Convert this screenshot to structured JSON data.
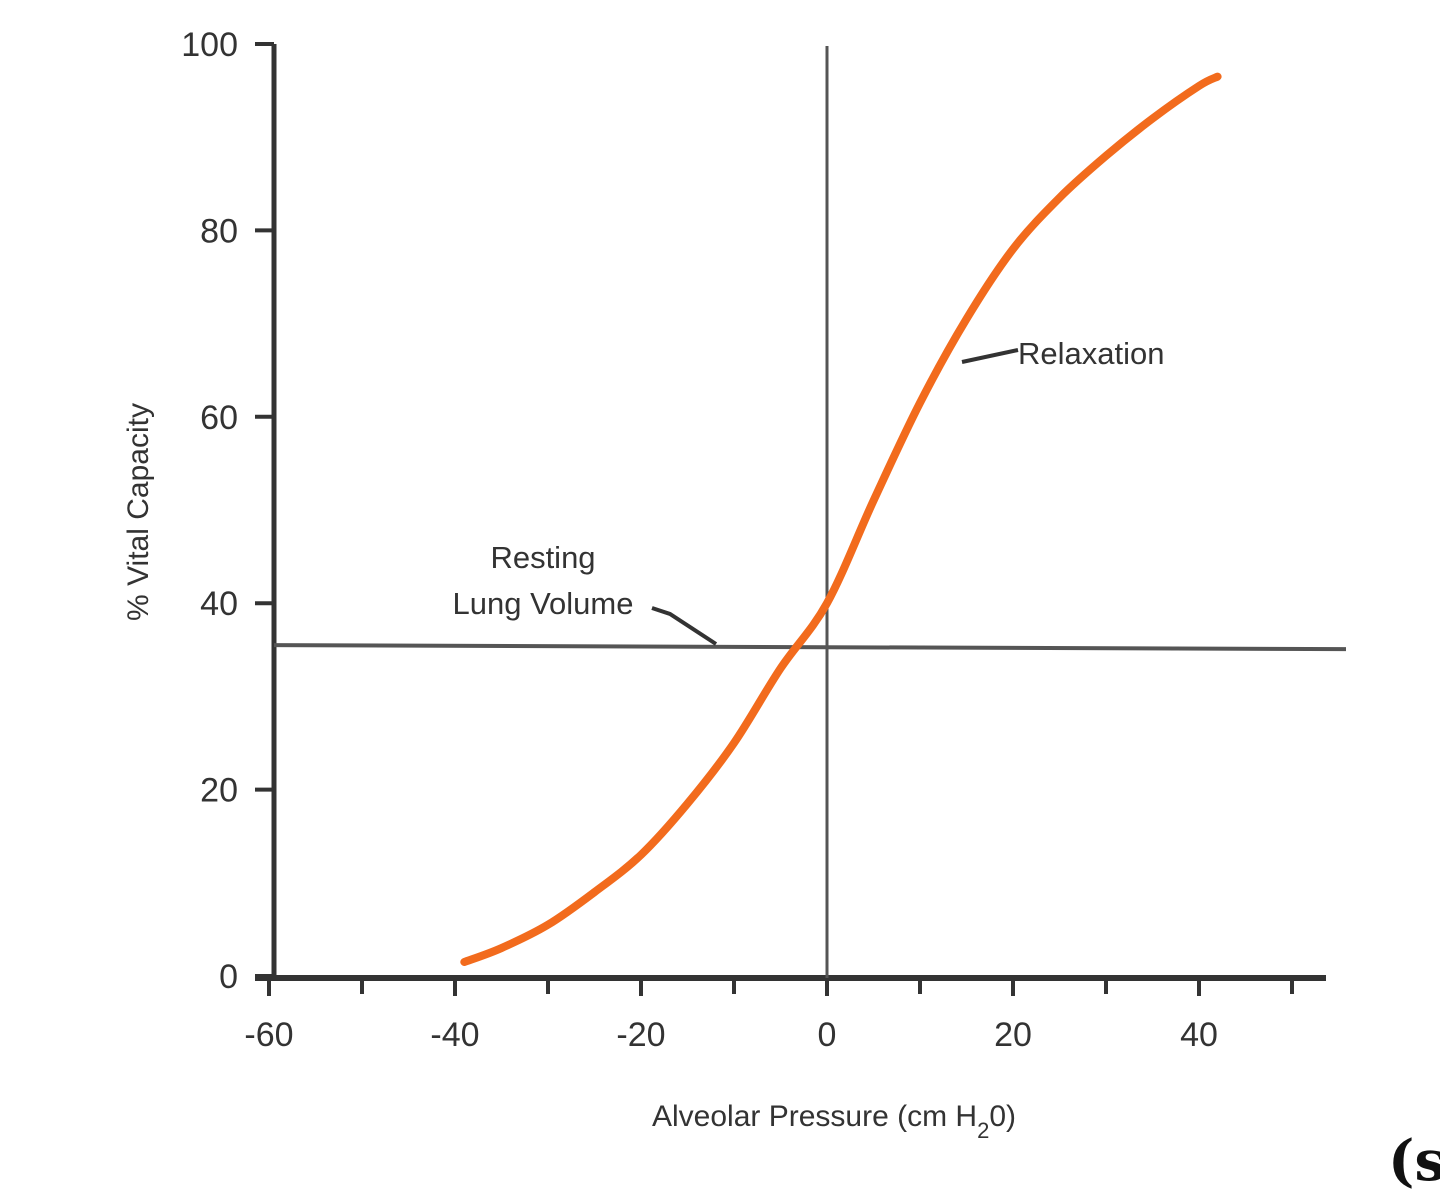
{
  "chart_data": {
    "type": "line",
    "title": "",
    "xlabel": "Alveolar Pressure (cm H",
    "xlabel_sub": "2",
    "xlabel_end": "0)",
    "ylabel": "% Vital Capacity",
    "xlim": [
      -60,
      55
    ],
    "ylim": [
      0,
      100
    ],
    "x_ticks": [
      -60,
      -40,
      -20,
      0,
      20,
      40
    ],
    "x_minor_ticks": [
      -50,
      -30,
      -10,
      10,
      30,
      50
    ],
    "y_ticks": [
      0,
      20,
      40,
      60,
      80,
      100
    ],
    "grid": false,
    "series": [
      {
        "name": "Relaxation",
        "color": "#f26b1d",
        "x": [
          -39,
          -35,
          -30,
          -25,
          -20,
          -15,
          -10,
          -5,
          0,
          5,
          10,
          15,
          20,
          25,
          30,
          35,
          40,
          42
        ],
        "y": [
          1.5,
          3,
          5.5,
          9,
          13,
          18.5,
          25,
          33,
          40,
          51,
          61.5,
          70.5,
          78,
          83.5,
          88,
          92,
          95.5,
          96.5
        ]
      }
    ],
    "reference_lines": {
      "horizontal_y": 35.5,
      "vertical_x": 0
    },
    "annotations": {
      "relaxation": "Relaxation",
      "resting_line1": "Resting",
      "resting_line2": "Lung Volume"
    }
  },
  "corner_text": "(s"
}
